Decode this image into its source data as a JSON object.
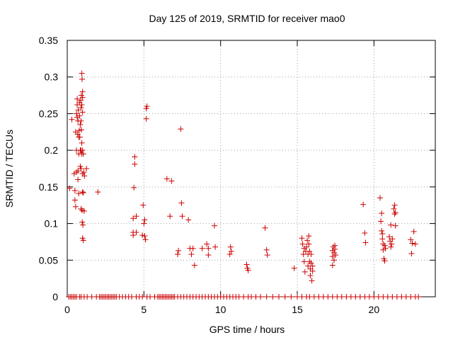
{
  "chart_data": {
    "type": "scatter",
    "title": "Day 125 of 2019, SRMTID for receiver mao0",
    "xlabel": "GPS time / hours",
    "ylabel": "SRMTID / TECUs",
    "xlim": [
      0,
      24
    ],
    "ylim": [
      0,
      0.35
    ],
    "xticks": [
      0,
      5,
      10,
      15,
      20
    ],
    "xtick_labels": [
      "0",
      "5",
      "10",
      "15",
      "20"
    ],
    "yticks": [
      0,
      0.05,
      0.1,
      0.15,
      0.2,
      0.25,
      0.3,
      0.35
    ],
    "ytick_labels": [
      "0",
      "0.05",
      "0.1",
      "0.15",
      "0.2",
      "0.25",
      "0.3",
      "0.35"
    ],
    "grid": true,
    "marker": "plus",
    "series": [
      {
        "name": "mao0",
        "color": "#cc0000",
        "points": [
          [
            0.15,
            0.148
          ],
          [
            0.3,
            0.242
          ],
          [
            0.45,
            0.168
          ],
          [
            0.5,
            0.145
          ],
          [
            0.5,
            0.132
          ],
          [
            0.55,
            0.123
          ],
          [
            0.55,
            0.225
          ],
          [
            0.6,
            0.25
          ],
          [
            0.6,
            0.2
          ],
          [
            0.6,
            0.17
          ],
          [
            0.65,
            0.262
          ],
          [
            0.65,
            0.27
          ],
          [
            0.65,
            0.245
          ],
          [
            0.68,
            0.222
          ],
          [
            0.7,
            0.24
          ],
          [
            0.7,
            0.172
          ],
          [
            0.7,
            0.16
          ],
          [
            0.72,
            0.255
          ],
          [
            0.75,
            0.218
          ],
          [
            0.75,
            0.195
          ],
          [
            0.75,
            0.141
          ],
          [
            0.78,
            0.227
          ],
          [
            0.8,
            0.265
          ],
          [
            0.8,
            0.247
          ],
          [
            0.82,
            0.218
          ],
          [
            0.85,
            0.235
          ],
          [
            0.85,
            0.2
          ],
          [
            0.85,
            0.178
          ],
          [
            0.88,
            0.268
          ],
          [
            0.9,
            0.258
          ],
          [
            0.9,
            0.24
          ],
          [
            0.9,
            0.2
          ],
          [
            0.9,
            0.175
          ],
          [
            0.9,
            0.12
          ],
          [
            0.92,
            0.275
          ],
          [
            0.92,
            0.228
          ],
          [
            0.95,
            0.305
          ],
          [
            0.95,
            0.262
          ],
          [
            0.95,
            0.21
          ],
          [
            0.95,
            0.195
          ],
          [
            0.97,
            0.297
          ],
          [
            0.97,
            0.118
          ],
          [
            0.98,
            0.102
          ],
          [
            1.0,
            0.28
          ],
          [
            1.0,
            0.272
          ],
          [
            1.0,
            0.252
          ],
          [
            1.0,
            0.2
          ],
          [
            1.0,
            0.168
          ],
          [
            1.0,
            0.143
          ],
          [
            1.0,
            0.08
          ],
          [
            1.02,
            0.098
          ],
          [
            1.05,
            0.195
          ],
          [
            1.05,
            0.142
          ],
          [
            1.05,
            0.077
          ],
          [
            1.08,
            0.17
          ],
          [
            1.1,
            0.117
          ],
          [
            1.12,
            0.165
          ],
          [
            1.25,
            0.175
          ],
          [
            2.0,
            0.143
          ],
          [
            4.3,
            0.088
          ],
          [
            4.3,
            0.084
          ],
          [
            4.3,
            0.107
          ],
          [
            4.35,
            0.149
          ],
          [
            4.4,
            0.191
          ],
          [
            4.4,
            0.181
          ],
          [
            4.5,
            0.11
          ],
          [
            4.5,
            0.088
          ],
          [
            4.9,
            0.084
          ],
          [
            4.95,
            0.125
          ],
          [
            5.0,
            0.1
          ],
          [
            5.05,
            0.105
          ],
          [
            5.05,
            0.083
          ],
          [
            5.1,
            0.078
          ],
          [
            5.15,
            0.257
          ],
          [
            5.15,
            0.243
          ],
          [
            5.2,
            0.26
          ],
          [
            6.5,
            0.161
          ],
          [
            6.7,
            0.11
          ],
          [
            6.8,
            0.158
          ],
          [
            7.2,
            0.058
          ],
          [
            7.25,
            0.063
          ],
          [
            7.4,
            0.229
          ],
          [
            7.45,
            0.128
          ],
          [
            7.5,
            0.11
          ],
          [
            7.9,
            0.105
          ],
          [
            8.0,
            0.066
          ],
          [
            8.1,
            0.058
          ],
          [
            8.2,
            0.066
          ],
          [
            8.3,
            0.043
          ],
          [
            8.8,
            0.066
          ],
          [
            9.1,
            0.072
          ],
          [
            9.2,
            0.066
          ],
          [
            9.2,
            0.057
          ],
          [
            9.6,
            0.097
          ],
          [
            9.65,
            0.068
          ],
          [
            10.6,
            0.058
          ],
          [
            10.65,
            0.068
          ],
          [
            10.7,
            0.062
          ],
          [
            11.7,
            0.044
          ],
          [
            11.75,
            0.039
          ],
          [
            11.8,
            0.036
          ],
          [
            12.9,
            0.094
          ],
          [
            13.0,
            0.064
          ],
          [
            13.05,
            0.057
          ],
          [
            14.8,
            0.039
          ],
          [
            15.3,
            0.08
          ],
          [
            15.35,
            0.072
          ],
          [
            15.4,
            0.058
          ],
          [
            15.45,
            0.066
          ],
          [
            15.45,
            0.048
          ],
          [
            15.5,
            0.034
          ],
          [
            15.55,
            0.062
          ],
          [
            15.6,
            0.068
          ],
          [
            15.65,
            0.077
          ],
          [
            15.7,
            0.058
          ],
          [
            15.7,
            0.042
          ],
          [
            15.75,
            0.083
          ],
          [
            15.75,
            0.072
          ],
          [
            15.8,
            0.062
          ],
          [
            15.8,
            0.048
          ],
          [
            15.85,
            0.038
          ],
          [
            15.85,
            0.029
          ],
          [
            15.9,
            0.058
          ],
          [
            15.9,
            0.046
          ],
          [
            15.95,
            0.022
          ],
          [
            16.0,
            0.042
          ],
          [
            16.0,
            0.035
          ],
          [
            17.3,
            0.063
          ],
          [
            17.3,
            0.055
          ],
          [
            17.3,
            0.043
          ],
          [
            17.35,
            0.068
          ],
          [
            17.4,
            0.05
          ],
          [
            17.4,
            0.06
          ],
          [
            17.45,
            0.065
          ],
          [
            17.45,
            0.07
          ],
          [
            17.5,
            0.057
          ],
          [
            19.3,
            0.126
          ],
          [
            19.4,
            0.087
          ],
          [
            19.45,
            0.074
          ],
          [
            20.4,
            0.135
          ],
          [
            20.45,
            0.103
          ],
          [
            20.5,
            0.114
          ],
          [
            20.5,
            0.09
          ],
          [
            20.55,
            0.086
          ],
          [
            20.55,
            0.079
          ],
          [
            20.6,
            0.072
          ],
          [
            20.6,
            0.064
          ],
          [
            20.65,
            0.052
          ],
          [
            20.7,
            0.07
          ],
          [
            20.7,
            0.049
          ],
          [
            20.75,
            0.066
          ],
          [
            21.0,
            0.082
          ],
          [
            21.05,
            0.076
          ],
          [
            21.1,
            0.098
          ],
          [
            21.1,
            0.068
          ],
          [
            21.15,
            0.072
          ],
          [
            21.2,
            0.079
          ],
          [
            21.3,
            0.12
          ],
          [
            21.35,
            0.125
          ],
          [
            21.35,
            0.113
          ],
          [
            21.4,
            0.115
          ],
          [
            21.4,
            0.097
          ],
          [
            22.4,
            0.078
          ],
          [
            22.45,
            0.059
          ],
          [
            22.5,
            0.073
          ],
          [
            22.6,
            0.089
          ],
          [
            22.7,
            0.072
          ]
        ],
        "zero_values_x": [
          0.1,
          0.2,
          0.3,
          0.4,
          0.5,
          0.6,
          0.8,
          0.9,
          1.1,
          1.3,
          1.6,
          1.9,
          2.1,
          2.2,
          2.3,
          2.4,
          2.5,
          2.6,
          2.7,
          2.8,
          2.9,
          3.0,
          3.1,
          3.2,
          3.4,
          3.6,
          3.8,
          4.0,
          4.2,
          4.5,
          4.7,
          4.9,
          5.2,
          5.4,
          5.7,
          5.9,
          6.0,
          6.1,
          6.2,
          6.3,
          6.4,
          6.5,
          6.6,
          6.7,
          6.8,
          6.9,
          7.0,
          7.2,
          7.4,
          7.6,
          7.8,
          8.0,
          8.2,
          8.4,
          8.6,
          8.8,
          9.0,
          9.2,
          9.4,
          9.6,
          9.8,
          10.0,
          10.2,
          10.4,
          10.6,
          10.8,
          11.0,
          11.2,
          11.5,
          11.8,
          12.0,
          12.3,
          12.6,
          13.0,
          13.4,
          13.8,
          14.2,
          14.6,
          15.0,
          15.3,
          15.6,
          15.8,
          16.1,
          16.4,
          16.7,
          17.0,
          17.3,
          17.6,
          17.9,
          18.2,
          18.5,
          18.8,
          19.1,
          19.4,
          19.7,
          20.0,
          20.3,
          20.6,
          20.9,
          21.2,
          21.5,
          21.8,
          22.1,
          22.4,
          22.7,
          22.9
        ]
      }
    ]
  }
}
